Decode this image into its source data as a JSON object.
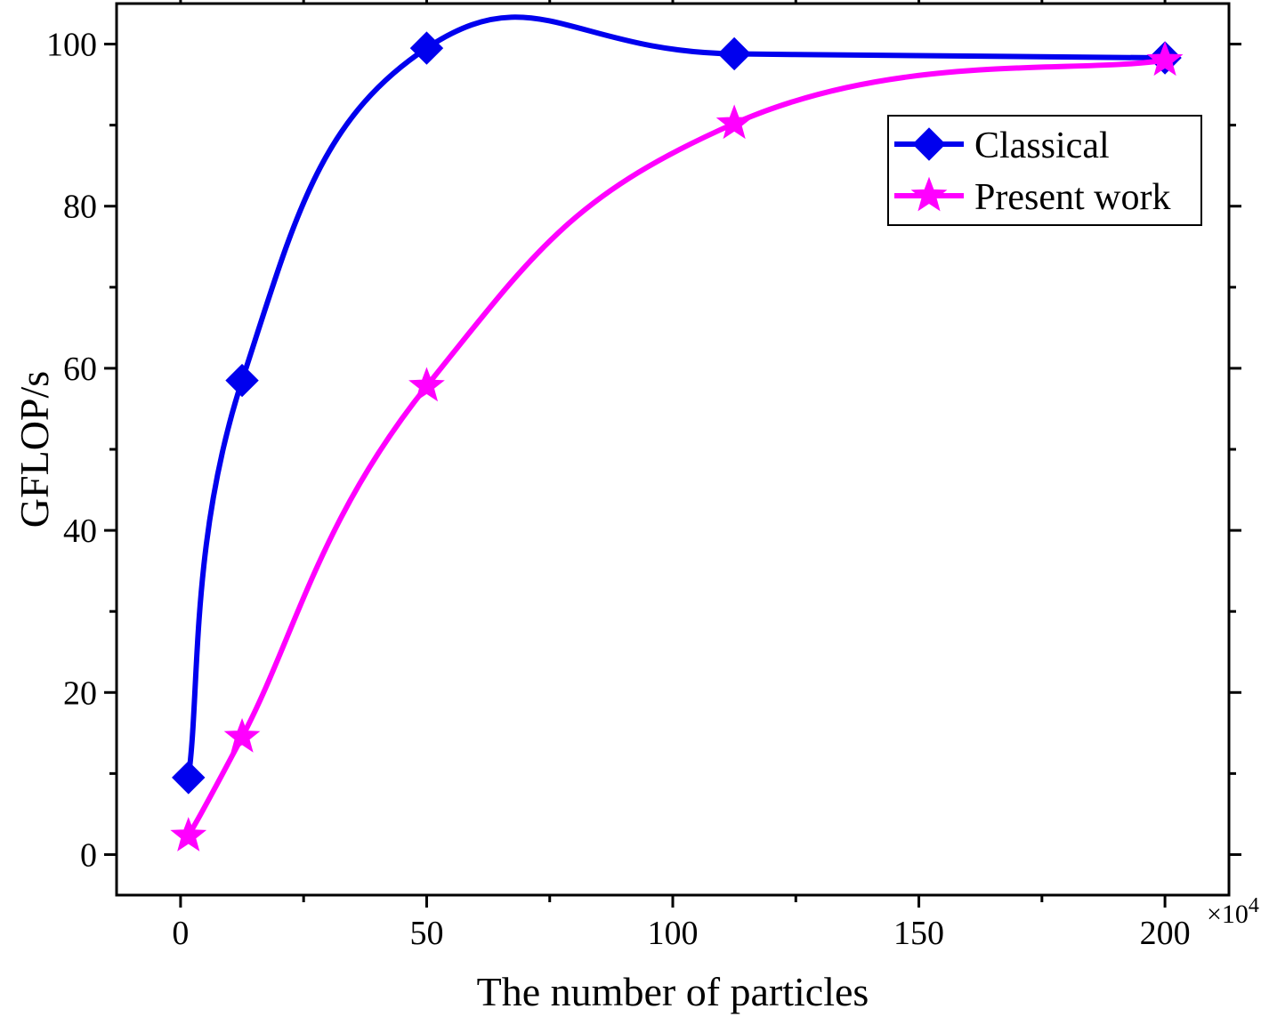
{
  "chart_data": {
    "type": "line",
    "title": "",
    "xlabel": "The number of particles",
    "ylabel": "GFLOP/s",
    "x_multiplier_label": "×10",
    "x_multiplier_exp": "4",
    "xlim": [
      -13,
      213
    ],
    "ylim": [
      -5,
      105
    ],
    "x_ticks": [
      0,
      50,
      100,
      150,
      200
    ],
    "x_tick_labels": [
      "0",
      "50",
      "100",
      "150",
      "200"
    ],
    "y_ticks": [
      0,
      20,
      40,
      60,
      80,
      100
    ],
    "y_tick_labels": [
      "0",
      "20",
      "40",
      "60",
      "80",
      "100"
    ],
    "grid": false,
    "legend_position": "top-right",
    "series": [
      {
        "name": "Classical",
        "color": "#0000ee",
        "marker": "diamond",
        "x": [
          1.6,
          12.5,
          50,
          112.5,
          200
        ],
        "values": [
          9.5,
          58.5,
          99.5,
          98.8,
          98.3
        ]
      },
      {
        "name": "Present work",
        "color": "#ff00ff",
        "marker": "star",
        "x": [
          1.6,
          12.5,
          50,
          112.5,
          200
        ],
        "values": [
          2.3,
          14.5,
          57.8,
          90.2,
          98.0
        ]
      }
    ]
  }
}
